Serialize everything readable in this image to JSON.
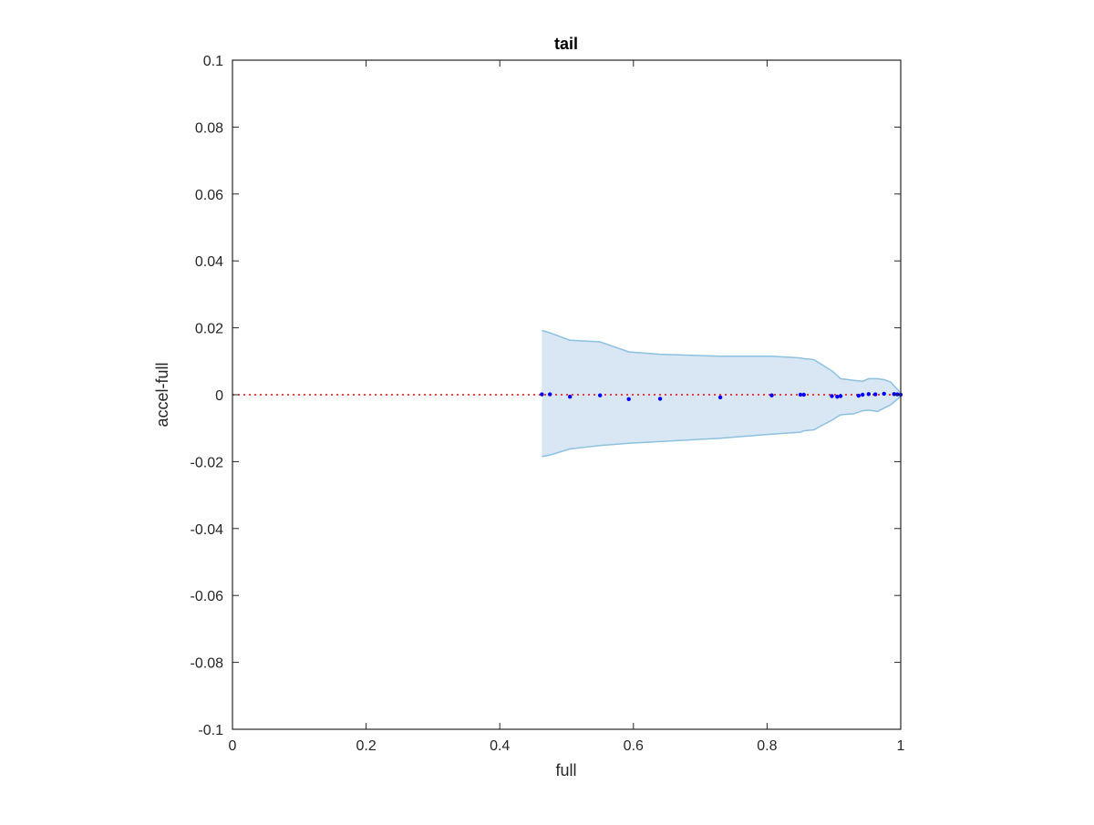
{
  "chart_data": {
    "type": "scatter",
    "title": "tail",
    "xlabel": "full",
    "ylabel": "accel-full",
    "xlim": [
      0,
      1
    ],
    "ylim": [
      -0.1,
      0.1
    ],
    "xticks": [
      0,
      0.2,
      0.4,
      0.6,
      0.8,
      1
    ],
    "xtick_labels": [
      "0",
      "0.2",
      "0.4",
      "0.6",
      "0.8",
      "1"
    ],
    "yticks": [
      0.1,
      0.08,
      0.06,
      0.04,
      0.02,
      0,
      -0.02,
      -0.04,
      -0.06,
      -0.08,
      -0.1
    ],
    "ytick_labels": [
      "0.1",
      "0.08",
      "0.06",
      "0.04",
      "0.02",
      "0",
      "-0.02",
      "-0.04",
      "-0.06",
      "-0.08",
      "-0.1"
    ],
    "grid": false,
    "reference_line": {
      "y": 0,
      "style": "dotted",
      "color": "#ff0000"
    },
    "band": {
      "color": "#d8e7f3",
      "edge_color": "#8dc1e0",
      "x": [
        0.463,
        0.475,
        0.505,
        0.55,
        0.593,
        0.64,
        0.73,
        0.807,
        0.85,
        0.855,
        0.87,
        0.898,
        0.91,
        0.93,
        0.943,
        0.952,
        0.965,
        0.975,
        0.985,
        0.994,
        1.0
      ],
      "upper": [
        0.0192,
        0.0185,
        0.0163,
        0.0158,
        0.0128,
        0.0121,
        0.0115,
        0.0115,
        0.011,
        0.0108,
        0.0105,
        0.007,
        0.0048,
        0.0043,
        0.004,
        0.0048,
        0.0048,
        0.0045,
        0.0038,
        0.0018,
        0.0005
      ],
      "lower": [
        -0.0185,
        -0.018,
        -0.0162,
        -0.0152,
        -0.0145,
        -0.014,
        -0.013,
        -0.0118,
        -0.0112,
        -0.0108,
        -0.0105,
        -0.0075,
        -0.006,
        -0.0057,
        -0.0048,
        -0.0046,
        -0.005,
        -0.004,
        -0.003,
        -0.0015,
        -0.0005
      ]
    },
    "series": [
      {
        "color": "#0000ff",
        "x": [
          0.463,
          0.475,
          0.505,
          0.55,
          0.593,
          0.64,
          0.73,
          0.807,
          0.85,
          0.855,
          0.897,
          0.905,
          0.91,
          0.937,
          0.943,
          0.952,
          0.962,
          0.975,
          0.99,
          0.995,
          1.0
        ],
        "y": [
          0.0001,
          0.0001,
          -0.0006,
          -0.0002,
          -0.0013,
          -0.0012,
          -0.0008,
          -0.0002,
          0.0,
          0.0,
          -0.0004,
          -0.0006,
          -0.0004,
          -0.0003,
          0.0,
          0.0002,
          0.0001,
          0.0003,
          0.0002,
          0.0001,
          0.0
        ]
      }
    ]
  }
}
